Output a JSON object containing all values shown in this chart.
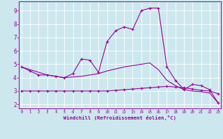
{
  "xlabel": "Windchill (Refroidissement éolien,°C)",
  "background_color": "#cce8ee",
  "grid_color": "#ffffff",
  "line_color": "#990099",
  "x_ticks": [
    0,
    1,
    2,
    3,
    4,
    5,
    6,
    7,
    8,
    9,
    10,
    11,
    12,
    13,
    14,
    15,
    16,
    17,
    18,
    19,
    20,
    21,
    22,
    23
  ],
  "y_ticks": [
    2,
    3,
    4,
    5,
    6,
    7,
    8,
    9
  ],
  "ylim": [
    1.7,
    9.7
  ],
  "xlim": [
    -0.3,
    23.3
  ],
  "line1_x": [
    0,
    1,
    2,
    3,
    4,
    5,
    6,
    7,
    8,
    9,
    10,
    11,
    12,
    13,
    14,
    15,
    16,
    17,
    18,
    19,
    20,
    21,
    22,
    23
  ],
  "line1_y": [
    4.8,
    4.5,
    4.2,
    4.2,
    4.1,
    4.0,
    4.3,
    5.4,
    5.3,
    4.4,
    6.7,
    7.5,
    7.8,
    7.6,
    9.0,
    9.2,
    9.2,
    4.8,
    3.8,
    3.1,
    3.5,
    3.4,
    3.1,
    2.1
  ],
  "line2_x": [
    0,
    1,
    2,
    3,
    4,
    5,
    6,
    7,
    8,
    9,
    10,
    11,
    12,
    13,
    14,
    15,
    16,
    17,
    18,
    19,
    20,
    21,
    22,
    23
  ],
  "line2_y": [
    3.0,
    3.0,
    3.0,
    3.0,
    3.0,
    3.0,
    3.0,
    3.0,
    3.0,
    3.0,
    3.0,
    3.05,
    3.1,
    3.15,
    3.2,
    3.25,
    3.3,
    3.35,
    3.3,
    3.25,
    3.15,
    3.05,
    3.0,
    2.8
  ],
  "line3_x": [
    0,
    1,
    2,
    3,
    4,
    5,
    6,
    7,
    8,
    9,
    10,
    11,
    12,
    13,
    14,
    15,
    16,
    17,
    18,
    19,
    20,
    21,
    22,
    23
  ],
  "line3_y": [
    4.8,
    4.6,
    4.4,
    4.2,
    4.1,
    4.0,
    4.05,
    4.1,
    4.2,
    4.3,
    4.5,
    4.65,
    4.8,
    4.9,
    5.0,
    5.1,
    4.6,
    3.8,
    3.4,
    3.1,
    3.0,
    2.95,
    2.85,
    2.1
  ]
}
